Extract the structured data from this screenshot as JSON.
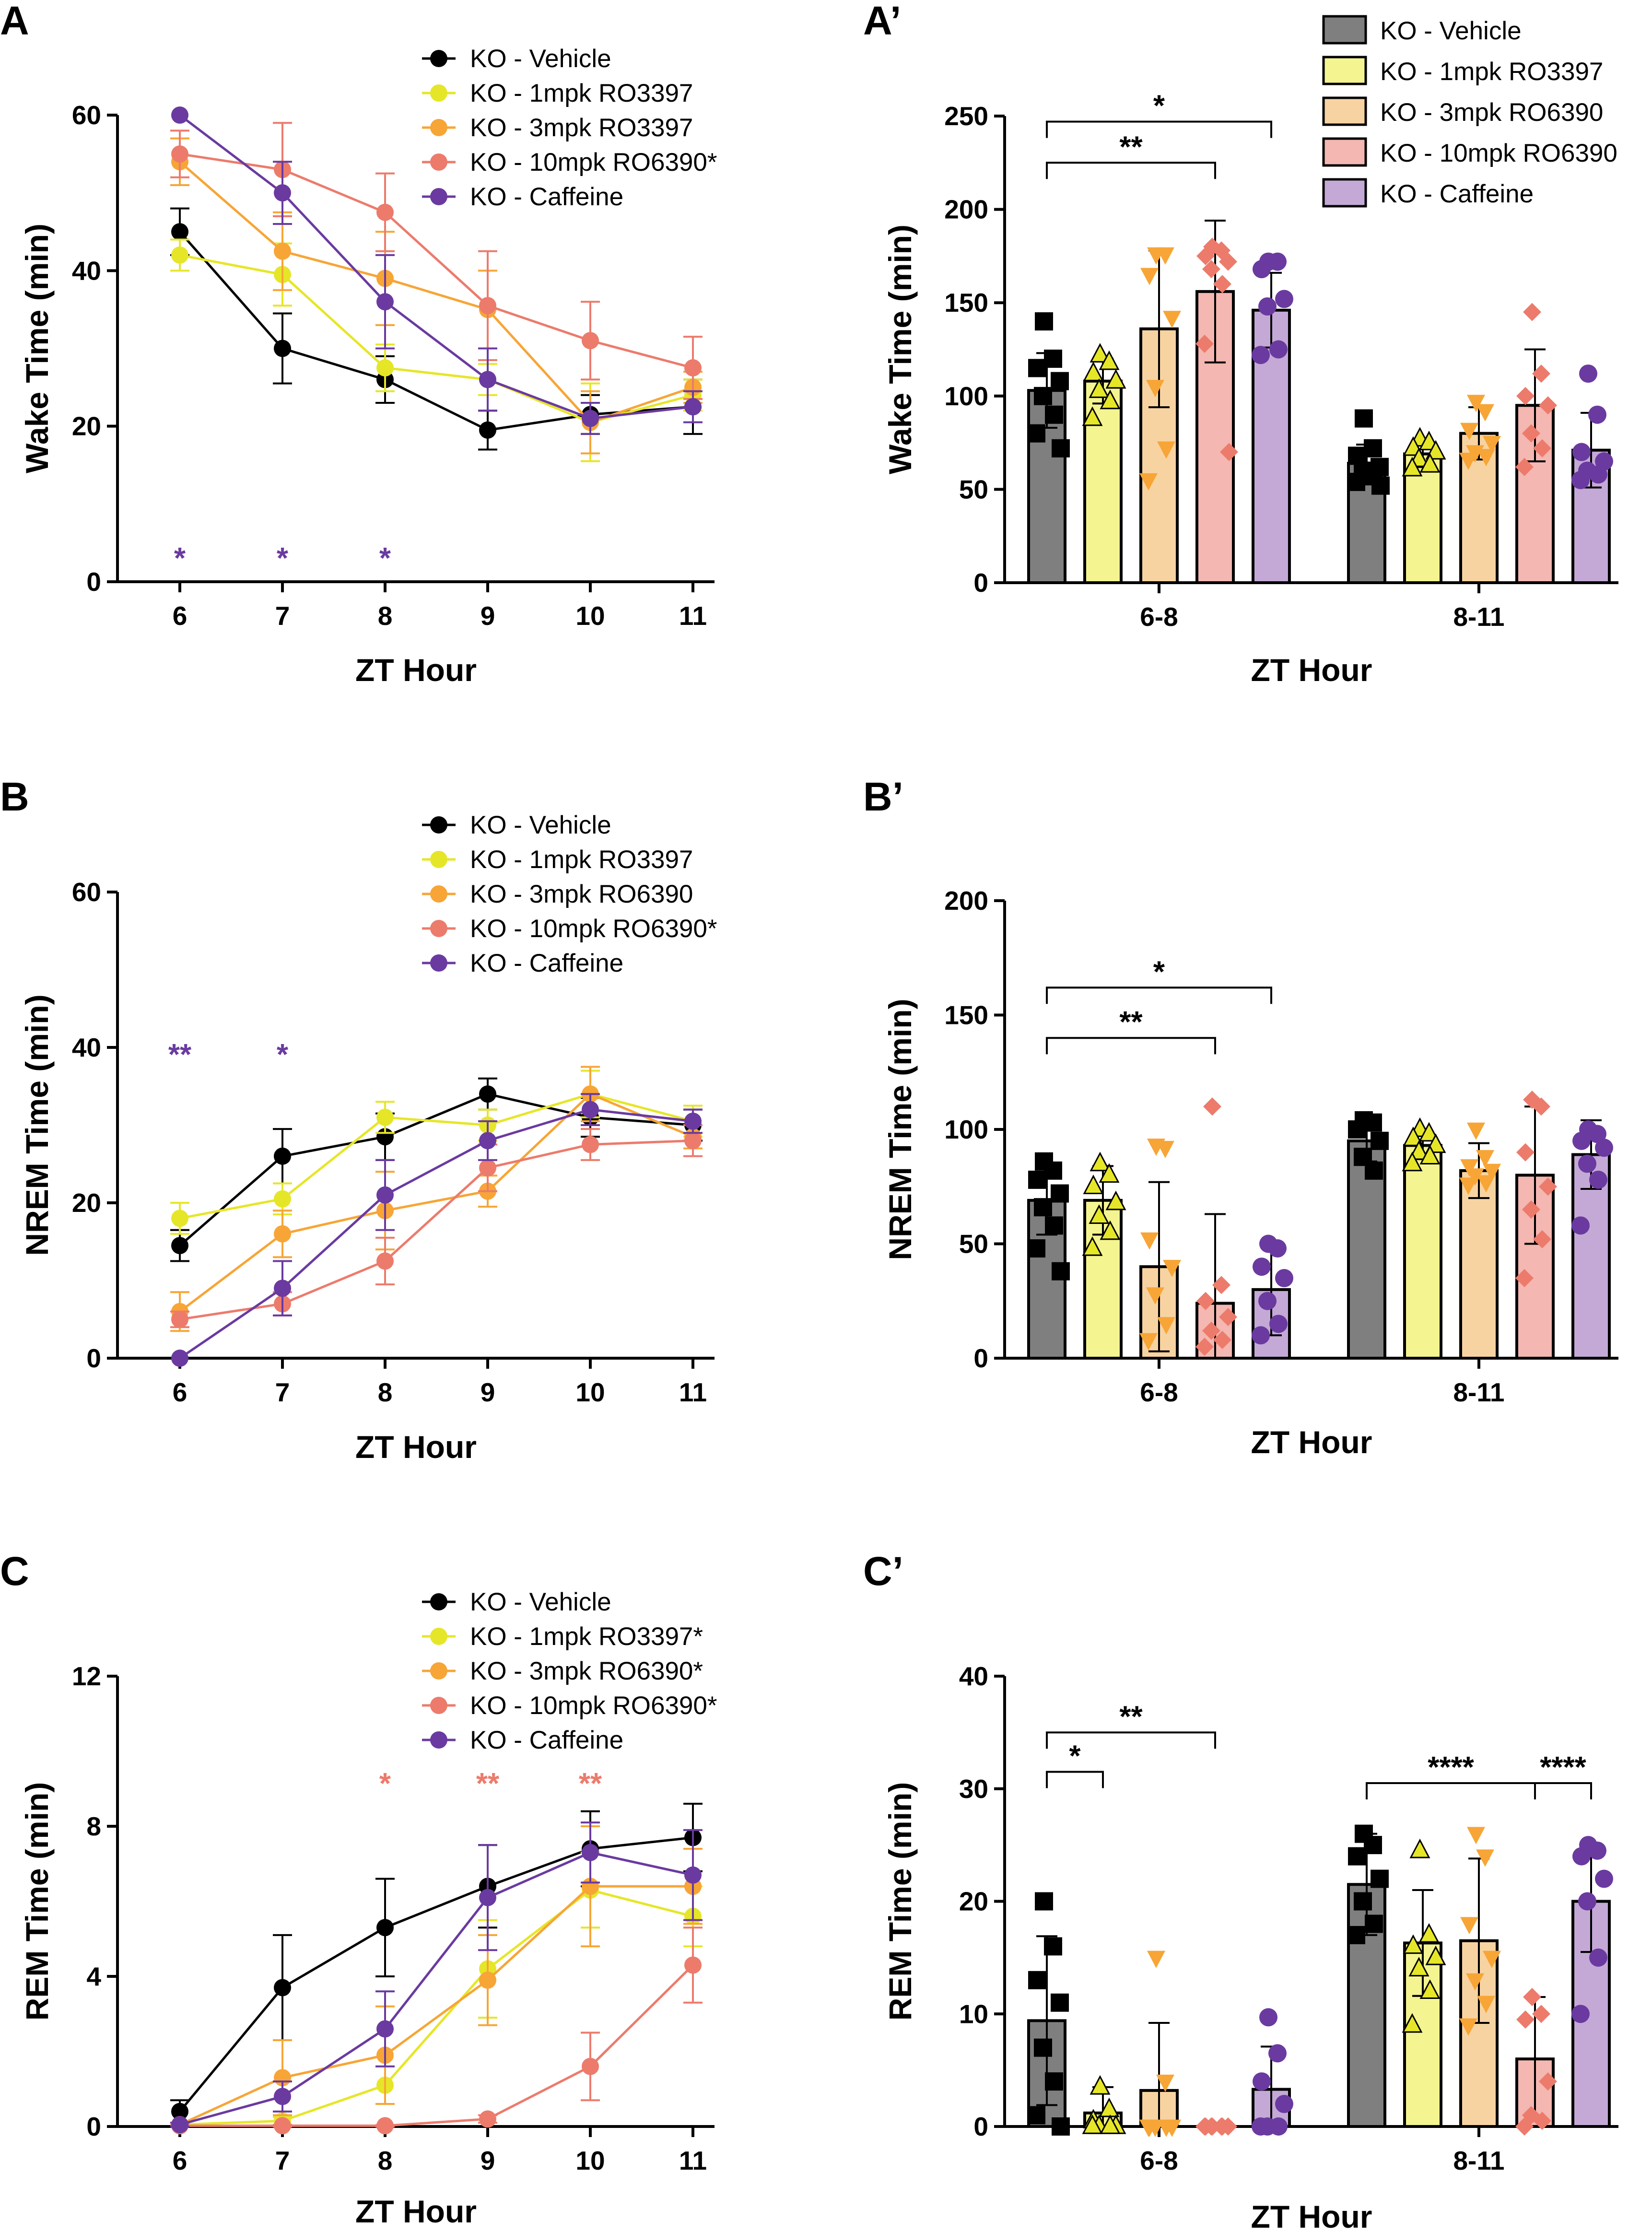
{
  "colors": {
    "vehicle": "#000000",
    "rx1": "#e6e628",
    "rx3": "#f7a536",
    "rx10": "#ec7b6c",
    "caff": "#6a3aa0",
    "bar_vehicle": "#7f7f7f",
    "bar_rx1": "#f4f491",
    "bar_rx3": "#f8d3a2",
    "bar_rx10": "#f4b7b1",
    "bar_caff": "#c4a9d6"
  },
  "panel_labels": {
    "A": "A",
    "A2": "A’",
    "B": "B",
    "B2": "B’",
    "C": "C",
    "C2": "C’"
  },
  "chart_data": [
    {
      "id": "A",
      "type": "line",
      "xlabel": "ZT Hour",
      "ylabel": "Wake Time (min)",
      "x": [
        6,
        7,
        8,
        9,
        10,
        11
      ],
      "ylim": [
        0,
        60
      ],
      "yticks": [
        0,
        20,
        40,
        60
      ],
      "legend": [
        "KO - Vehicle",
        "KO - 1mpk RO3397",
        "KO - 3mpk RO3397",
        "KO - 10mpk RO6390*",
        "KO - Caffeine"
      ],
      "series": [
        {
          "key": "vehicle",
          "values": [
            45,
            30,
            26,
            19.5,
            21.5,
            22.5
          ],
          "err": [
            3,
            4.5,
            3,
            2.5,
            2.5,
            3.5
          ]
        },
        {
          "key": "rx1",
          "values": [
            42,
            39.5,
            27.5,
            26,
            20.5,
            24
          ],
          "err": [
            2,
            4,
            3,
            2,
            5,
            2
          ]
        },
        {
          "key": "rx3",
          "values": [
            54,
            42.5,
            39,
            35,
            20.5,
            25
          ],
          "err": [
            3,
            5,
            6,
            5,
            4,
            2
          ]
        },
        {
          "key": "rx10",
          "values": [
            55,
            53,
            47.5,
            35.5,
            31,
            27.5
          ],
          "err": [
            3,
            6,
            5,
            7,
            5,
            4
          ]
        },
        {
          "key": "caff",
          "values": [
            60,
            50,
            36,
            26,
            21,
            22.5
          ],
          "err": [
            0,
            4,
            6,
            4,
            2,
            2
          ]
        }
      ],
      "sig": [
        {
          "x": 6,
          "text": "*",
          "color": "caff"
        },
        {
          "x": 7,
          "text": "*",
          "color": "caff"
        },
        {
          "x": 8,
          "text": "*",
          "color": "caff"
        }
      ]
    },
    {
      "id": "B",
      "type": "line",
      "xlabel": "ZT Hour",
      "ylabel": "NREM Time (min)",
      "x": [
        6,
        7,
        8,
        9,
        10,
        11
      ],
      "ylim": [
        0,
        60
      ],
      "yticks": [
        0,
        20,
        40,
        60
      ],
      "legend": [
        "KO - Vehicle",
        "KO - 1mpk RO3397",
        "KO - 3mpk RO6390",
        "KO - 10mpk RO6390*",
        "KO - Caffeine"
      ],
      "series": [
        {
          "key": "vehicle",
          "values": [
            14.5,
            26,
            28.5,
            34,
            31,
            30
          ],
          "err": [
            2,
            3.5,
            3,
            2,
            2.5,
            2
          ]
        },
        {
          "key": "rx1",
          "values": [
            18,
            20.5,
            31,
            30,
            34,
            30.5
          ],
          "err": [
            2,
            2,
            2,
            2,
            3,
            2
          ]
        },
        {
          "key": "rx3",
          "values": [
            6,
            16,
            19,
            21.5,
            34,
            28.5
          ],
          "err": [
            2.5,
            3,
            5,
            2,
            3.5,
            1.5
          ]
        },
        {
          "key": "rx10",
          "values": [
            5,
            7,
            12.5,
            24.5,
            27.5,
            28
          ],
          "err": [
            1,
            1.5,
            3,
            3,
            2,
            2
          ]
        },
        {
          "key": "caff",
          "values": [
            0,
            9,
            21,
            28,
            32,
            30.5
          ],
          "err": [
            0,
            3.5,
            4.5,
            2.5,
            2,
            1.5
          ]
        }
      ],
      "sig": [
        {
          "x": 6,
          "text": "**",
          "color": "caff"
        },
        {
          "x": 7,
          "text": "*",
          "color": "caff"
        }
      ]
    },
    {
      "id": "C",
      "type": "line",
      "xlabel": "ZT Hour",
      "ylabel": "REM Time (min)",
      "x": [
        6,
        7,
        8,
        9,
        10,
        11
      ],
      "ylim": [
        0,
        12
      ],
      "yticks": [
        0,
        4,
        8,
        12
      ],
      "legend": [
        "KO - Vehicle",
        "KO - 1mpk RO3397*",
        "KO - 3mpk RO6390*",
        "KO - 10mpk RO6390*",
        "KO - Caffeine"
      ],
      "series": [
        {
          "key": "vehicle",
          "values": [
            0.4,
            3.7,
            5.3,
            6.4,
            7.4,
            7.7
          ],
          "err": [
            0.3,
            1.4,
            1.3,
            1.1,
            1.0,
            0.9
          ]
        },
        {
          "key": "rx1",
          "values": [
            0.05,
            0.15,
            1.1,
            4.2,
            6.3,
            5.6
          ],
          "err": [
            0.05,
            0.1,
            0.5,
            1.3,
            1.0,
            0.8
          ]
        },
        {
          "key": "rx3",
          "values": [
            0.05,
            1.3,
            1.9,
            3.9,
            6.4,
            6.4
          ],
          "err": [
            0.05,
            1.0,
            1.3,
            1.2,
            1.6,
            1.0
          ]
        },
        {
          "key": "rx10",
          "values": [
            0.02,
            0.02,
            0.02,
            0.2,
            1.6,
            4.3
          ],
          "err": [
            0.02,
            0.02,
            0.02,
            0.1,
            0.9,
            1.0
          ]
        },
        {
          "key": "caff",
          "values": [
            0.05,
            0.8,
            2.6,
            6.1,
            7.3,
            6.7
          ],
          "err": [
            0.05,
            0.4,
            1.0,
            1.4,
            0.8,
            1.2
          ]
        }
      ],
      "sig": [
        {
          "x": 8,
          "text": "*",
          "color": "rx10"
        },
        {
          "x": 9,
          "text": "**",
          "color": "rx10"
        },
        {
          "x": 10,
          "text": "**",
          "color": "rx10"
        }
      ]
    },
    {
      "id": "A2",
      "type": "bar",
      "xlabel": "ZT Hour",
      "ylabel": "Wake Time (min)",
      "categories": [
        "6-8",
        "8-11"
      ],
      "ylim": [
        0,
        250
      ],
      "yticks": [
        0,
        50,
        100,
        150,
        200,
        250
      ],
      "legend": [
        "KO - Vehicle",
        "KO - 1mpk RO3397",
        "KO - 3mpk RO6390",
        "KO - 10mpk RO6390",
        "KO - Caffeine"
      ],
      "groups": [
        [
          {
            "key": "vehicle",
            "mean": 103,
            "sd": 20,
            "points": [
              140,
              120,
              115,
              108,
              100,
              90,
              80,
              72
            ]
          },
          {
            "key": "rx1",
            "mean": 108,
            "sd": 12,
            "points": [
              122,
              118,
              112,
              108,
              103,
              97,
              88
            ]
          },
          {
            "key": "rx3",
            "mean": 136,
            "sd": 42,
            "points": [
              176,
              176,
              165,
              142,
              105,
              72,
              55
            ]
          },
          {
            "key": "rx10",
            "mean": 156,
            "sd": 38,
            "points": [
              180,
              178,
              175,
              172,
              168,
              160,
              128,
              70
            ]
          },
          {
            "key": "caff",
            "mean": 146,
            "sd": 20,
            "points": [
              172,
              172,
              168,
              152,
              148,
              125,
              122
            ]
          }
        ],
        [
          {
            "key": "vehicle",
            "mean": 64,
            "sd": 10,
            "points": [
              88,
              72,
              68,
              62,
              60,
              57,
              54,
              52
            ]
          },
          {
            "key": "rx1",
            "mean": 69,
            "sd": 7,
            "points": [
              77,
              75,
              72,
              70,
              66,
              63,
              61
            ]
          },
          {
            "key": "rx3",
            "mean": 80,
            "sd": 14,
            "points": [
              97,
              92,
              82,
              75,
              70,
              68,
              66
            ]
          },
          {
            "key": "rx10",
            "mean": 95,
            "sd": 30,
            "points": [
              145,
              112,
              100,
              95,
              80,
              72,
              62
            ]
          },
          {
            "key": "caff",
            "mean": 71,
            "sd": 20,
            "points": [
              112,
              90,
              70,
              65,
              60,
              58,
              55
            ]
          }
        ]
      ],
      "brackets": [
        {
          "group": 0,
          "from": 0,
          "to": 3,
          "level": 225,
          "text": "**"
        },
        {
          "group": 0,
          "from": 0,
          "to": 4,
          "level": 247,
          "text": "*"
        }
      ]
    },
    {
      "id": "B2",
      "type": "bar",
      "xlabel": "ZT Hour",
      "ylabel": "NREM Time (min)",
      "categories": [
        "6-8",
        "8-11"
      ],
      "ylim": [
        0,
        200
      ],
      "yticks": [
        0,
        50,
        100,
        150,
        200
      ],
      "groups": [
        [
          {
            "key": "vehicle",
            "mean": 69,
            "sd": 15,
            "points": [
              86,
              82,
              78,
              72,
              66,
              58,
              48,
              38
            ]
          },
          {
            "key": "rx1",
            "mean": 69,
            "sd": 15,
            "points": [
              85,
              80,
              75,
              68,
              62,
              55,
              48
            ]
          },
          {
            "key": "rx3",
            "mean": 40,
            "sd": 37,
            "points": [
              93,
              92,
              52,
              40,
              28,
              15,
              8
            ]
          },
          {
            "key": "rx10",
            "mean": 24,
            "sd": 39,
            "points": [
              110,
              32,
              25,
              18,
              12,
              8,
              5
            ]
          },
          {
            "key": "caff",
            "mean": 30,
            "sd": 20,
            "points": [
              50,
              48,
              40,
              35,
              25,
              15,
              10
            ]
          }
        ],
        [
          {
            "key": "vehicle",
            "mean": 95,
            "sd": 9,
            "points": [
              104,
              103,
              100,
              95,
              88,
              82
            ]
          },
          {
            "key": "rx1",
            "mean": 93,
            "sd": 6,
            "points": [
              100,
              98,
              96,
              93,
              90,
              88,
              85
            ]
          },
          {
            "key": "rx3",
            "mean": 82,
            "sd": 12,
            "points": [
              100,
              88,
              84,
              82,
              80,
              77,
              76
            ]
          },
          {
            "key": "rx10",
            "mean": 80,
            "sd": 30,
            "points": [
              113,
              110,
              90,
              75,
              65,
              52,
              35
            ]
          },
          {
            "key": "caff",
            "mean": 89,
            "sd": 15,
            "points": [
              100,
              98,
              95,
              92,
              85,
              78,
              58
            ]
          }
        ]
      ],
      "brackets": [
        {
          "group": 0,
          "from": 0,
          "to": 3,
          "level": 140,
          "text": "**"
        },
        {
          "group": 0,
          "from": 0,
          "to": 4,
          "level": 162,
          "text": "*"
        }
      ]
    },
    {
      "id": "C2",
      "type": "bar",
      "xlabel": "ZT Hour",
      "ylabel": "REM Time (min)",
      "categories": [
        "6-8",
        "8-11"
      ],
      "ylim": [
        0,
        40
      ],
      "yticks": [
        0,
        10,
        20,
        30,
        40
      ],
      "groups": [
        [
          {
            "key": "vehicle",
            "mean": 9.4,
            "sd": 7.5,
            "points": [
              20,
              16,
              13,
              11,
              7,
              4,
              1,
              0
            ]
          },
          {
            "key": "rx1",
            "mean": 1.2,
            "sd": 2.3,
            "points": [
              3.5,
              1.5,
              0.5,
              0,
              0,
              0,
              0
            ]
          },
          {
            "key": "rx3",
            "mean": 3.2,
            "sd": 6,
            "points": [
              15,
              4,
              0,
              0,
              0,
              0,
              0
            ]
          },
          {
            "key": "rx10",
            "mean": 0,
            "sd": 0,
            "points": [
              0,
              0,
              0,
              0,
              0,
              0,
              0
            ]
          },
          {
            "key": "caff",
            "mean": 3.3,
            "sd": 3.8,
            "points": [
              9.7,
              6.5,
              4,
              2,
              0,
              0,
              0
            ]
          }
        ],
        [
          {
            "key": "vehicle",
            "mean": 21.5,
            "sd": 4.5,
            "points": [
              26,
              25,
              24,
              22,
              20,
              18,
              17
            ]
          },
          {
            "key": "rx1",
            "mean": 16.3,
            "sd": 4.7,
            "points": [
              24.5,
              17,
              16,
              15,
              14,
              12,
              9
            ]
          },
          {
            "key": "rx3",
            "mean": 16.5,
            "sd": 7.3,
            "points": [
              26,
              24,
              18,
              15,
              13,
              11,
              9
            ]
          },
          {
            "key": "rx10",
            "mean": 6,
            "sd": 5.5,
            "points": [
              11.5,
              10,
              9.5,
              4,
              1,
              0.5,
              0
            ]
          },
          {
            "key": "caff",
            "mean": 20,
            "sd": 4.5,
            "points": [
              25,
              24.5,
              24,
              22,
              20,
              15,
              10
            ]
          }
        ]
      ],
      "brackets": [
        {
          "group": 0,
          "from": 0,
          "to": 1,
          "level": 31.5,
          "text": "*"
        },
        {
          "group": 0,
          "from": 0,
          "to": 3,
          "level": 35,
          "text": "**"
        },
        {
          "group": 1,
          "from": 0,
          "to": 3,
          "level": 30.5,
          "text": "****"
        },
        {
          "group": 1,
          "from": 3,
          "to": 4,
          "level": 30.5,
          "text": "****"
        }
      ]
    }
  ]
}
